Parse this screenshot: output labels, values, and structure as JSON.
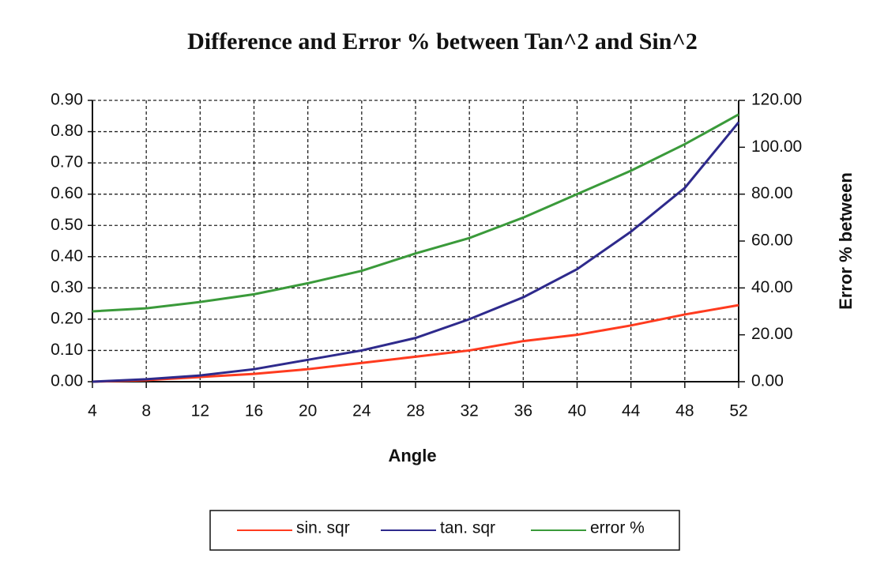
{
  "chart_data": {
    "type": "line",
    "title": "Difference and Error % between Tan^2 and Sin^2",
    "x_label": "Angle",
    "y2_label": "Error % between",
    "x": [
      4,
      8,
      12,
      16,
      20,
      24,
      28,
      32,
      36,
      40,
      44,
      48,
      52
    ],
    "xlim": [
      4,
      52
    ],
    "xticks": [
      4,
      8,
      12,
      16,
      20,
      24,
      28,
      32,
      36,
      40,
      44,
      48,
      52
    ],
    "ylim": [
      0,
      0.9
    ],
    "yticks": [
      {
        "value": 0,
        "label": "0.00"
      },
      {
        "value": 0.1,
        "label": "0.10"
      },
      {
        "value": 0.2,
        "label": "0.20"
      },
      {
        "value": 0.3,
        "label": "0.30"
      },
      {
        "value": 0.4,
        "label": "0.40"
      },
      {
        "value": 0.5,
        "label": "0.50"
      },
      {
        "value": 0.6,
        "label": "0.60"
      },
      {
        "value": 0.7,
        "label": "0.70"
      },
      {
        "value": 0.8,
        "label": "0.80"
      },
      {
        "value": 0.9,
        "label": "0.90"
      }
    ],
    "y2lim": [
      0,
      120
    ],
    "y2ticks": [
      {
        "value": 0,
        "label": "0.00"
      },
      {
        "value": 20,
        "label": "20.00"
      },
      {
        "value": 40,
        "label": "40.00"
      },
      {
        "value": 60,
        "label": "60.00"
      },
      {
        "value": 80,
        "label": "80.00"
      },
      {
        "value": 100,
        "label": "100.00"
      },
      {
        "value": 120,
        "label": "120.00"
      }
    ],
    "grid": true,
    "legend": "bottom",
    "series": [
      {
        "name": "sin. sqr",
        "color": "#ff3b1f",
        "values": [
          0,
          0.005,
          0.015,
          0.025,
          0.04,
          0.06,
          0.08,
          0.1,
          0.13,
          0.15,
          0.18,
          0.215,
          0.245
        ]
      },
      {
        "name": "tan. sqr",
        "color": "#2e2a8c",
        "values": [
          0,
          0.008,
          0.02,
          0.04,
          0.07,
          0.1,
          0.14,
          0.2,
          0.27,
          0.36,
          0.48,
          0.62,
          0.83
        ]
      },
      {
        "name": "error %",
        "color": "#3a9a3a",
        "axis": "y2",
        "values": [
          30,
          31.3,
          34,
          37.3,
          42,
          47.3,
          54.7,
          61.3,
          70,
          80,
          90,
          101.3,
          114
        ]
      }
    ]
  }
}
